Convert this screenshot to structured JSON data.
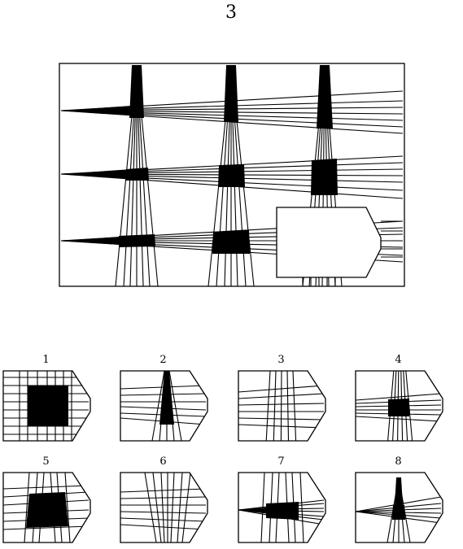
{
  "puzzle": {
    "number": "3",
    "matrix_cells": 9,
    "missing_piece": "bottom-right"
  },
  "options": [
    {
      "label": "1",
      "content": "grid with large black square center"
    },
    {
      "label": "2",
      "content": "vertical beam with black fill, horizontal lines"
    },
    {
      "label": "3",
      "content": "crossed beams, no fill"
    },
    {
      "label": "4",
      "content": "crossed beams with small black square"
    },
    {
      "label": "5",
      "content": "horizontal fan with large black trapezoid"
    },
    {
      "label": "6",
      "content": "converging vertical lines, no fill"
    },
    {
      "label": "7",
      "content": "horizontal beam with black fill"
    },
    {
      "label": "8",
      "content": "vertical beam with small black square"
    }
  ],
  "colors": {
    "ink": "#000000",
    "paper": "#ffffff"
  }
}
